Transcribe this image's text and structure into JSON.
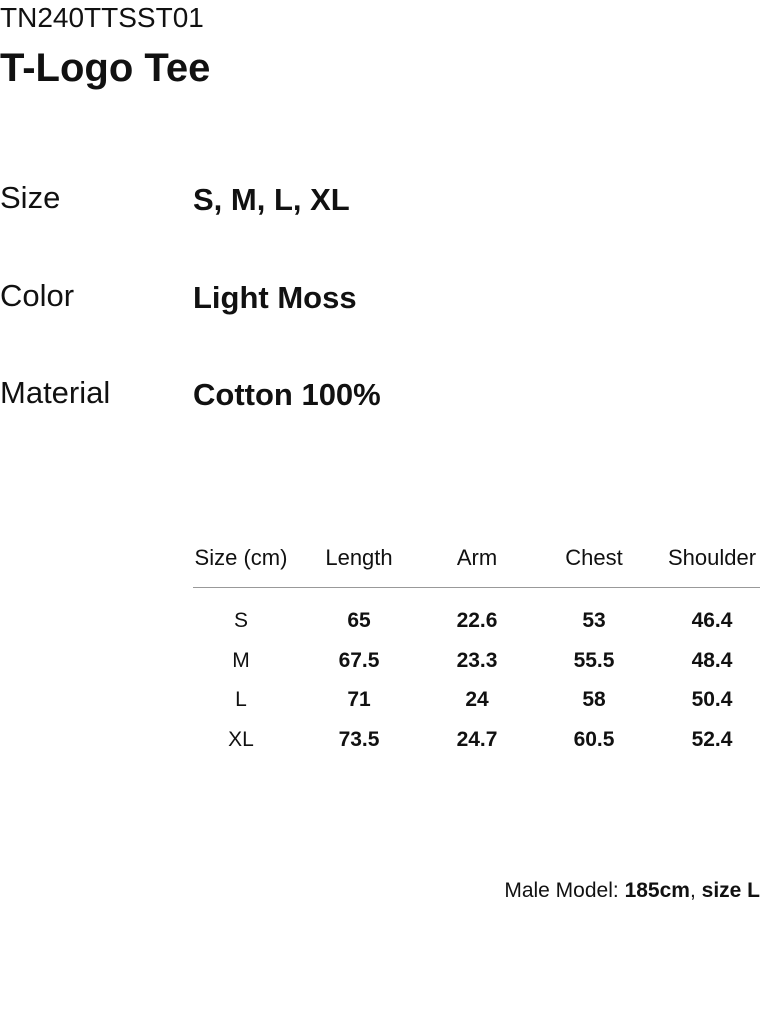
{
  "header": {
    "code": "TN240TTSST01",
    "title": "T-Logo Tee"
  },
  "specs": [
    {
      "label": "Size",
      "value": "S, M, L, XL"
    },
    {
      "label": "Color",
      "value": "Light Moss"
    },
    {
      "label": "Material",
      "value": "Cotton 100%"
    }
  ],
  "table": {
    "columns": [
      "Size (cm)",
      "Length",
      "Arm",
      "Chest",
      "Shoulder"
    ],
    "rows": [
      [
        "S",
        "65",
        "22.6",
        "53",
        "46.4"
      ],
      [
        "M",
        "67.5",
        "23.3",
        "55.5",
        "48.4"
      ],
      [
        "L",
        "71",
        "24",
        "58",
        "50.4"
      ],
      [
        "XL",
        "73.5",
        "24.7",
        "60.5",
        "52.4"
      ]
    ]
  },
  "footer": {
    "label": "Male Model:",
    "height": "185cm",
    "separator": ",",
    "size": "size L"
  }
}
